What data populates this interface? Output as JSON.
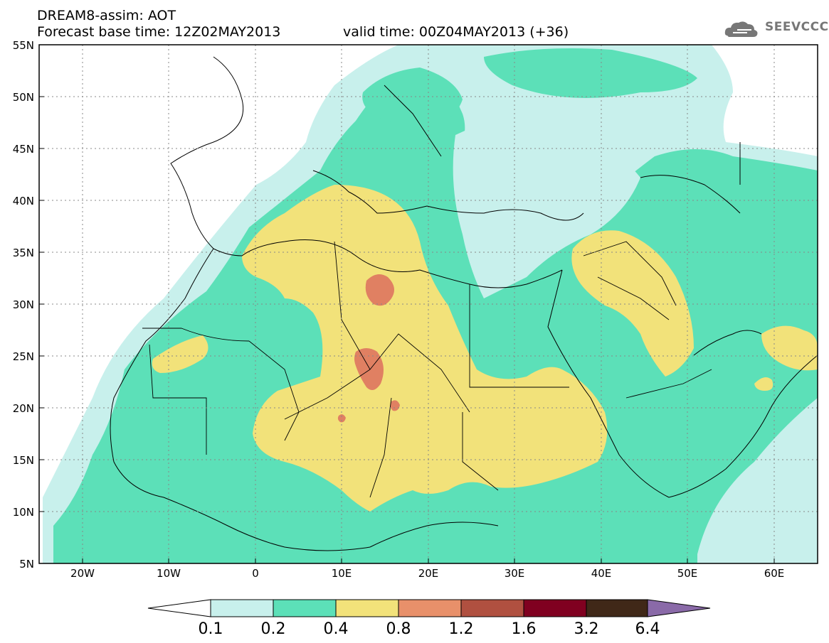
{
  "header": {
    "title": "DREAM8-assim: AOT",
    "base_time": "Forecast base time: 12Z02MAY2013",
    "valid_time": "valid time: 00Z04MAY2013 (+36)",
    "logo_text": "SEEVCCC"
  },
  "axes": {
    "x_ticks": [
      "20W",
      "10W",
      "0",
      "10E",
      "20E",
      "30E",
      "40E",
      "50E",
      "60E"
    ],
    "y_ticks": [
      "55N",
      "50N",
      "45N",
      "40N",
      "35N",
      "30N",
      "25N",
      "20N",
      "15N",
      "10N",
      "5N"
    ],
    "lon_range": [
      -25,
      65
    ],
    "lat_range": [
      5,
      55
    ]
  },
  "colorbar": {
    "labels": [
      "0.1",
      "0.2",
      "0.4",
      "0.8",
      "1.2",
      "1.6",
      "3.2",
      "6.4"
    ],
    "colors": [
      "#c8f0ec",
      "#5ce0b8",
      "#f2e27a",
      "#e8906a",
      "#b05040",
      "#800020",
      "#402818",
      "#8a6aa8"
    ]
  },
  "fields": {
    "cyan_color": "#c8f0ec",
    "green_color": "#5ce0b8",
    "yellow_color": "#f2e27a",
    "salmon_color": "#e08062"
  }
}
